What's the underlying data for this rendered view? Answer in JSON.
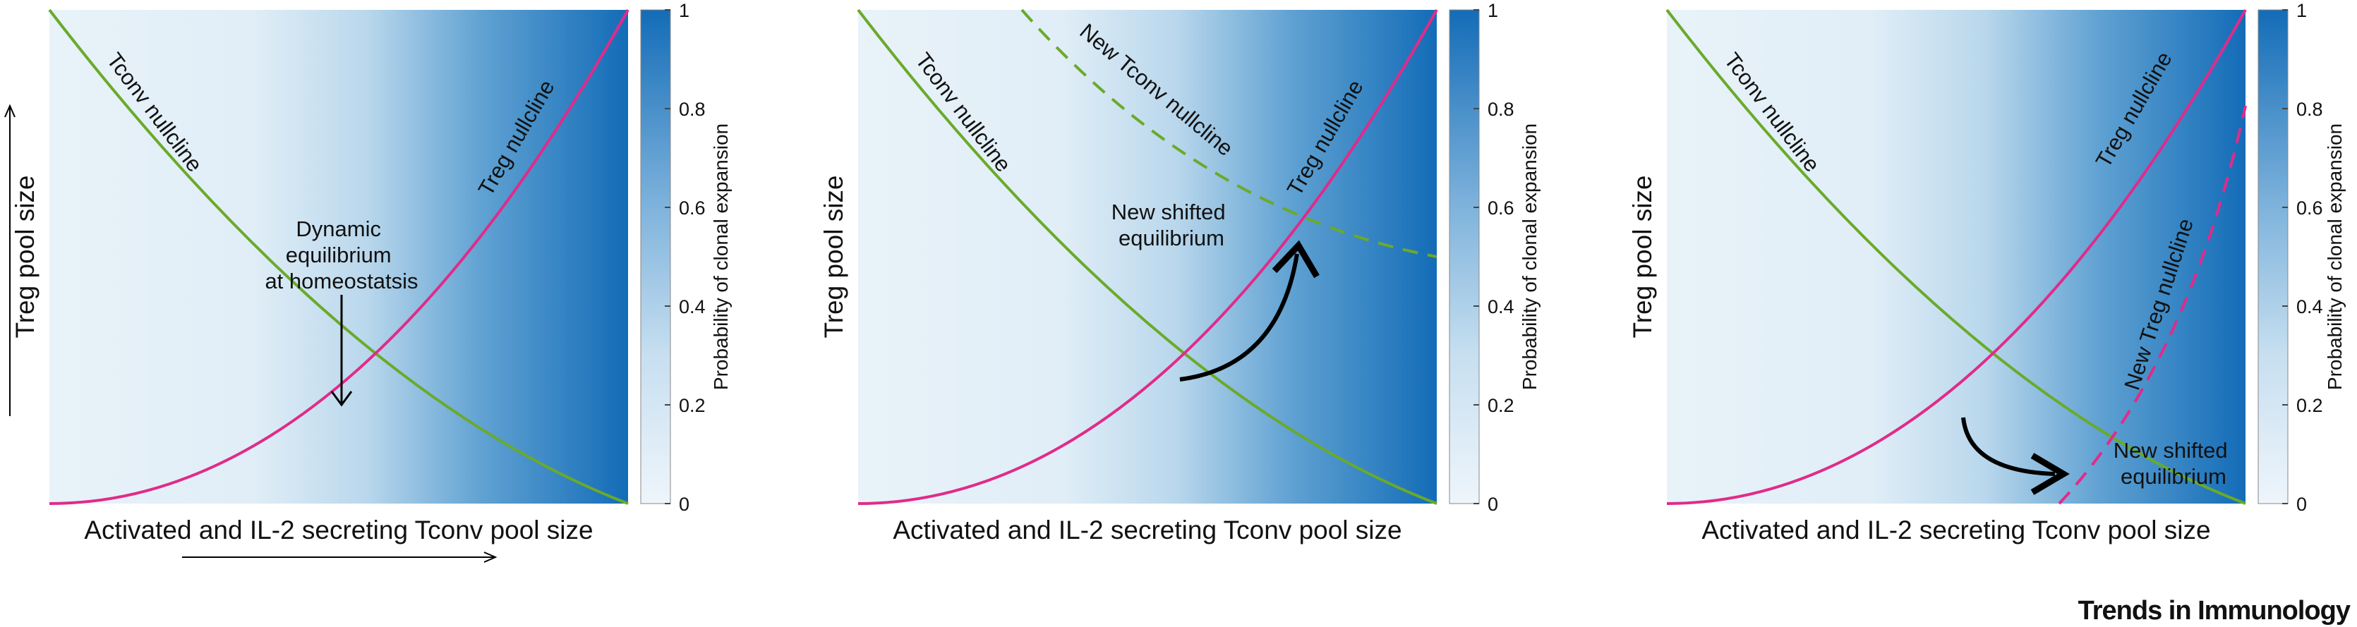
{
  "panels": [
    {
      "y_axis_label": "Treg pool size",
      "x_axis_label": "Activated and IL-2 secreting Tconv pool size",
      "tconv_label": "Tconv nullcline",
      "treg_label": "Treg nullcline",
      "annotation": [
        "Dynamic",
        "equilibrium",
        "at homeostatsis"
      ],
      "new_curve_label": "",
      "colorbar_label": "Probability of clonal expansion",
      "colorbar_ticks": [
        "0",
        "0.2",
        "0.4",
        "0.6",
        "0.8",
        "1"
      ]
    },
    {
      "y_axis_label": "Treg pool size",
      "x_axis_label": "Activated and IL-2 secreting Tconv pool size",
      "tconv_label": "Tconv nullcline",
      "treg_label": "Treg nullcline",
      "annotation": [
        "New shifted",
        "equilibrium"
      ],
      "new_curve_label": "New Tconv nullcline",
      "colorbar_label": "Probability of clonal expansion",
      "colorbar_ticks": [
        "0",
        "0.2",
        "0.4",
        "0.6",
        "0.8",
        "1"
      ]
    },
    {
      "y_axis_label": "Treg pool size",
      "x_axis_label": "Activated and IL-2 secreting Tconv pool size",
      "tconv_label": "Tconv nullcline",
      "treg_label": "Treg nullcline",
      "annotation": [
        "New shifted",
        "equilibrium"
      ],
      "new_curve_label": "New Treg nullcline",
      "colorbar_label": "Probability of clonal expansion",
      "colorbar_ticks": [
        "0",
        "0.2",
        "0.4",
        "0.6",
        "0.8",
        "1"
      ]
    }
  ],
  "brand": "Trends in Immunology",
  "colors": {
    "tconv": "#6aaa2a",
    "treg": "#e02b8a",
    "map_low": "#e8f2f9",
    "map_high": "#1a6fba"
  }
}
